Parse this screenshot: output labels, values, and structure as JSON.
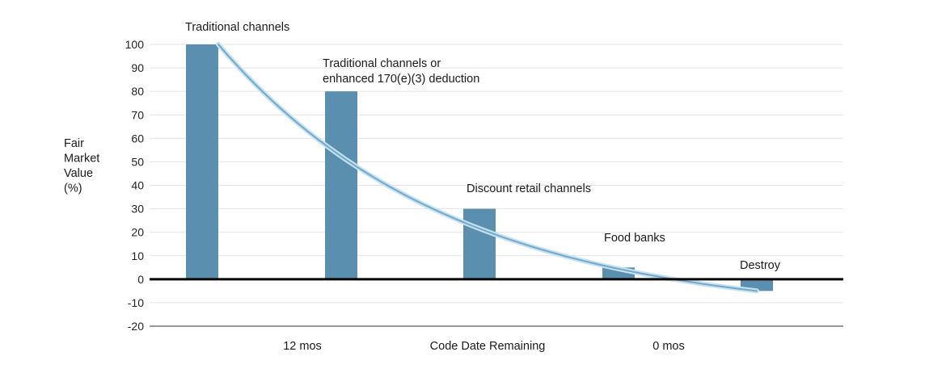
{
  "chart_data": {
    "type": "bar",
    "title": "",
    "ylabel_lines": [
      "Fair",
      "Market",
      "Value",
      "(%)"
    ],
    "xlabel": "Code Date Remaining",
    "x_tick_labels": [
      "12 mos",
      "0 mos"
    ],
    "ylim": [
      -20,
      100
    ],
    "y_ticks": [
      100,
      90,
      80,
      70,
      60,
      50,
      40,
      30,
      20,
      10,
      0,
      -10,
      -20
    ],
    "grid": true,
    "colors": {
      "bar": "#5a8fb0",
      "curve": "#8cc0de",
      "grid": "#e3e3e3",
      "zero_line": "#000000"
    },
    "categories": [
      "Traditional channels",
      "Traditional channels or enhanced 170(e)(3) deduction",
      "Discount retail channels",
      "Food banks",
      "Destroy"
    ],
    "values": [
      100,
      80,
      30,
      5,
      -5
    ],
    "annotations": [
      {
        "lines": [
          "Traditional channels"
        ]
      },
      {
        "lines": [
          "Traditional channels or",
          "enhanced 170(e)(3) deduction"
        ]
      },
      {
        "lines": [
          "Discount retail channels"
        ]
      },
      {
        "lines": [
          "Food banks"
        ]
      },
      {
        "lines": [
          "Destroy"
        ]
      }
    ],
    "trend_curve": {
      "type": "decay",
      "start_value": 100,
      "end_value": -5
    }
  }
}
